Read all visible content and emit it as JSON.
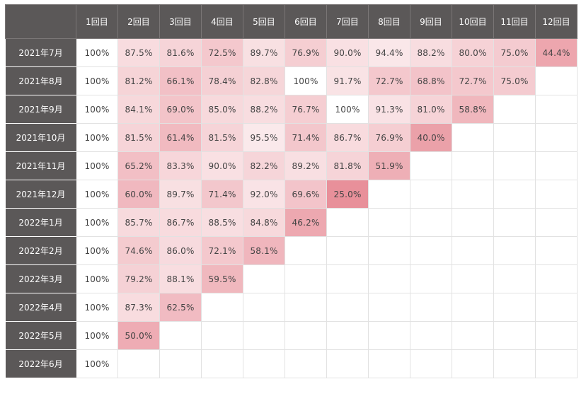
{
  "chart_data": {
    "type": "heatmap",
    "columns": [
      "1回目",
      "2回目",
      "3回目",
      "4回目",
      "5回目",
      "6回目",
      "7回目",
      "8回目",
      "9回目",
      "10回目",
      "11回目",
      "12回目"
    ],
    "rows": [
      {
        "label": "2021年7月",
        "values": [
          "100%",
          "87.5%",
          "81.6%",
          "72.5%",
          "89.7%",
          "76.9%",
          "90.0%",
          "94.4%",
          "88.2%",
          "80.0%",
          "75.0%",
          "44.4%"
        ]
      },
      {
        "label": "2021年8月",
        "values": [
          "100%",
          "81.2%",
          "66.1%",
          "78.4%",
          "82.8%",
          "100%",
          "91.7%",
          "72.7%",
          "68.8%",
          "72.7%",
          "75.0%"
        ]
      },
      {
        "label": "2021年9月",
        "values": [
          "100%",
          "84.1%",
          "69.0%",
          "85.0%",
          "88.2%",
          "76.7%",
          "100%",
          "91.3%",
          "81.0%",
          "58.8%"
        ]
      },
      {
        "label": "2021年10月",
        "values": [
          "100%",
          "81.5%",
          "61.4%",
          "81.5%",
          "95.5%",
          "71.4%",
          "86.7%",
          "76.9%",
          "40.0%"
        ]
      },
      {
        "label": "2021年11月",
        "values": [
          "100%",
          "65.2%",
          "83.3%",
          "90.0%",
          "82.2%",
          "89.2%",
          "81.8%",
          "51.9%"
        ]
      },
      {
        "label": "2021年12月",
        "values": [
          "100%",
          "60.0%",
          "89.7%",
          "71.4%",
          "92.0%",
          "69.6%",
          "25.0%"
        ]
      },
      {
        "label": "2022年1月",
        "values": [
          "100%",
          "85.7%",
          "86.7%",
          "88.5%",
          "84.8%",
          "46.2%"
        ]
      },
      {
        "label": "2022年2月",
        "values": [
          "100%",
          "74.6%",
          "86.0%",
          "72.1%",
          "58.1%"
        ]
      },
      {
        "label": "2022年3月",
        "values": [
          "100%",
          "79.2%",
          "88.1%",
          "59.5%"
        ]
      },
      {
        "label": "2022年4月",
        "values": [
          "100%",
          "87.3%",
          "62.5%"
        ]
      },
      {
        "label": "2022年5月",
        "values": [
          "100%",
          "50.0%"
        ]
      },
      {
        "label": "2022年6月",
        "values": [
          "100%"
        ]
      }
    ],
    "colors": {
      "header_bg": "#5b5858",
      "header_text": "#ffffff",
      "heat": "#e8909a"
    }
  }
}
